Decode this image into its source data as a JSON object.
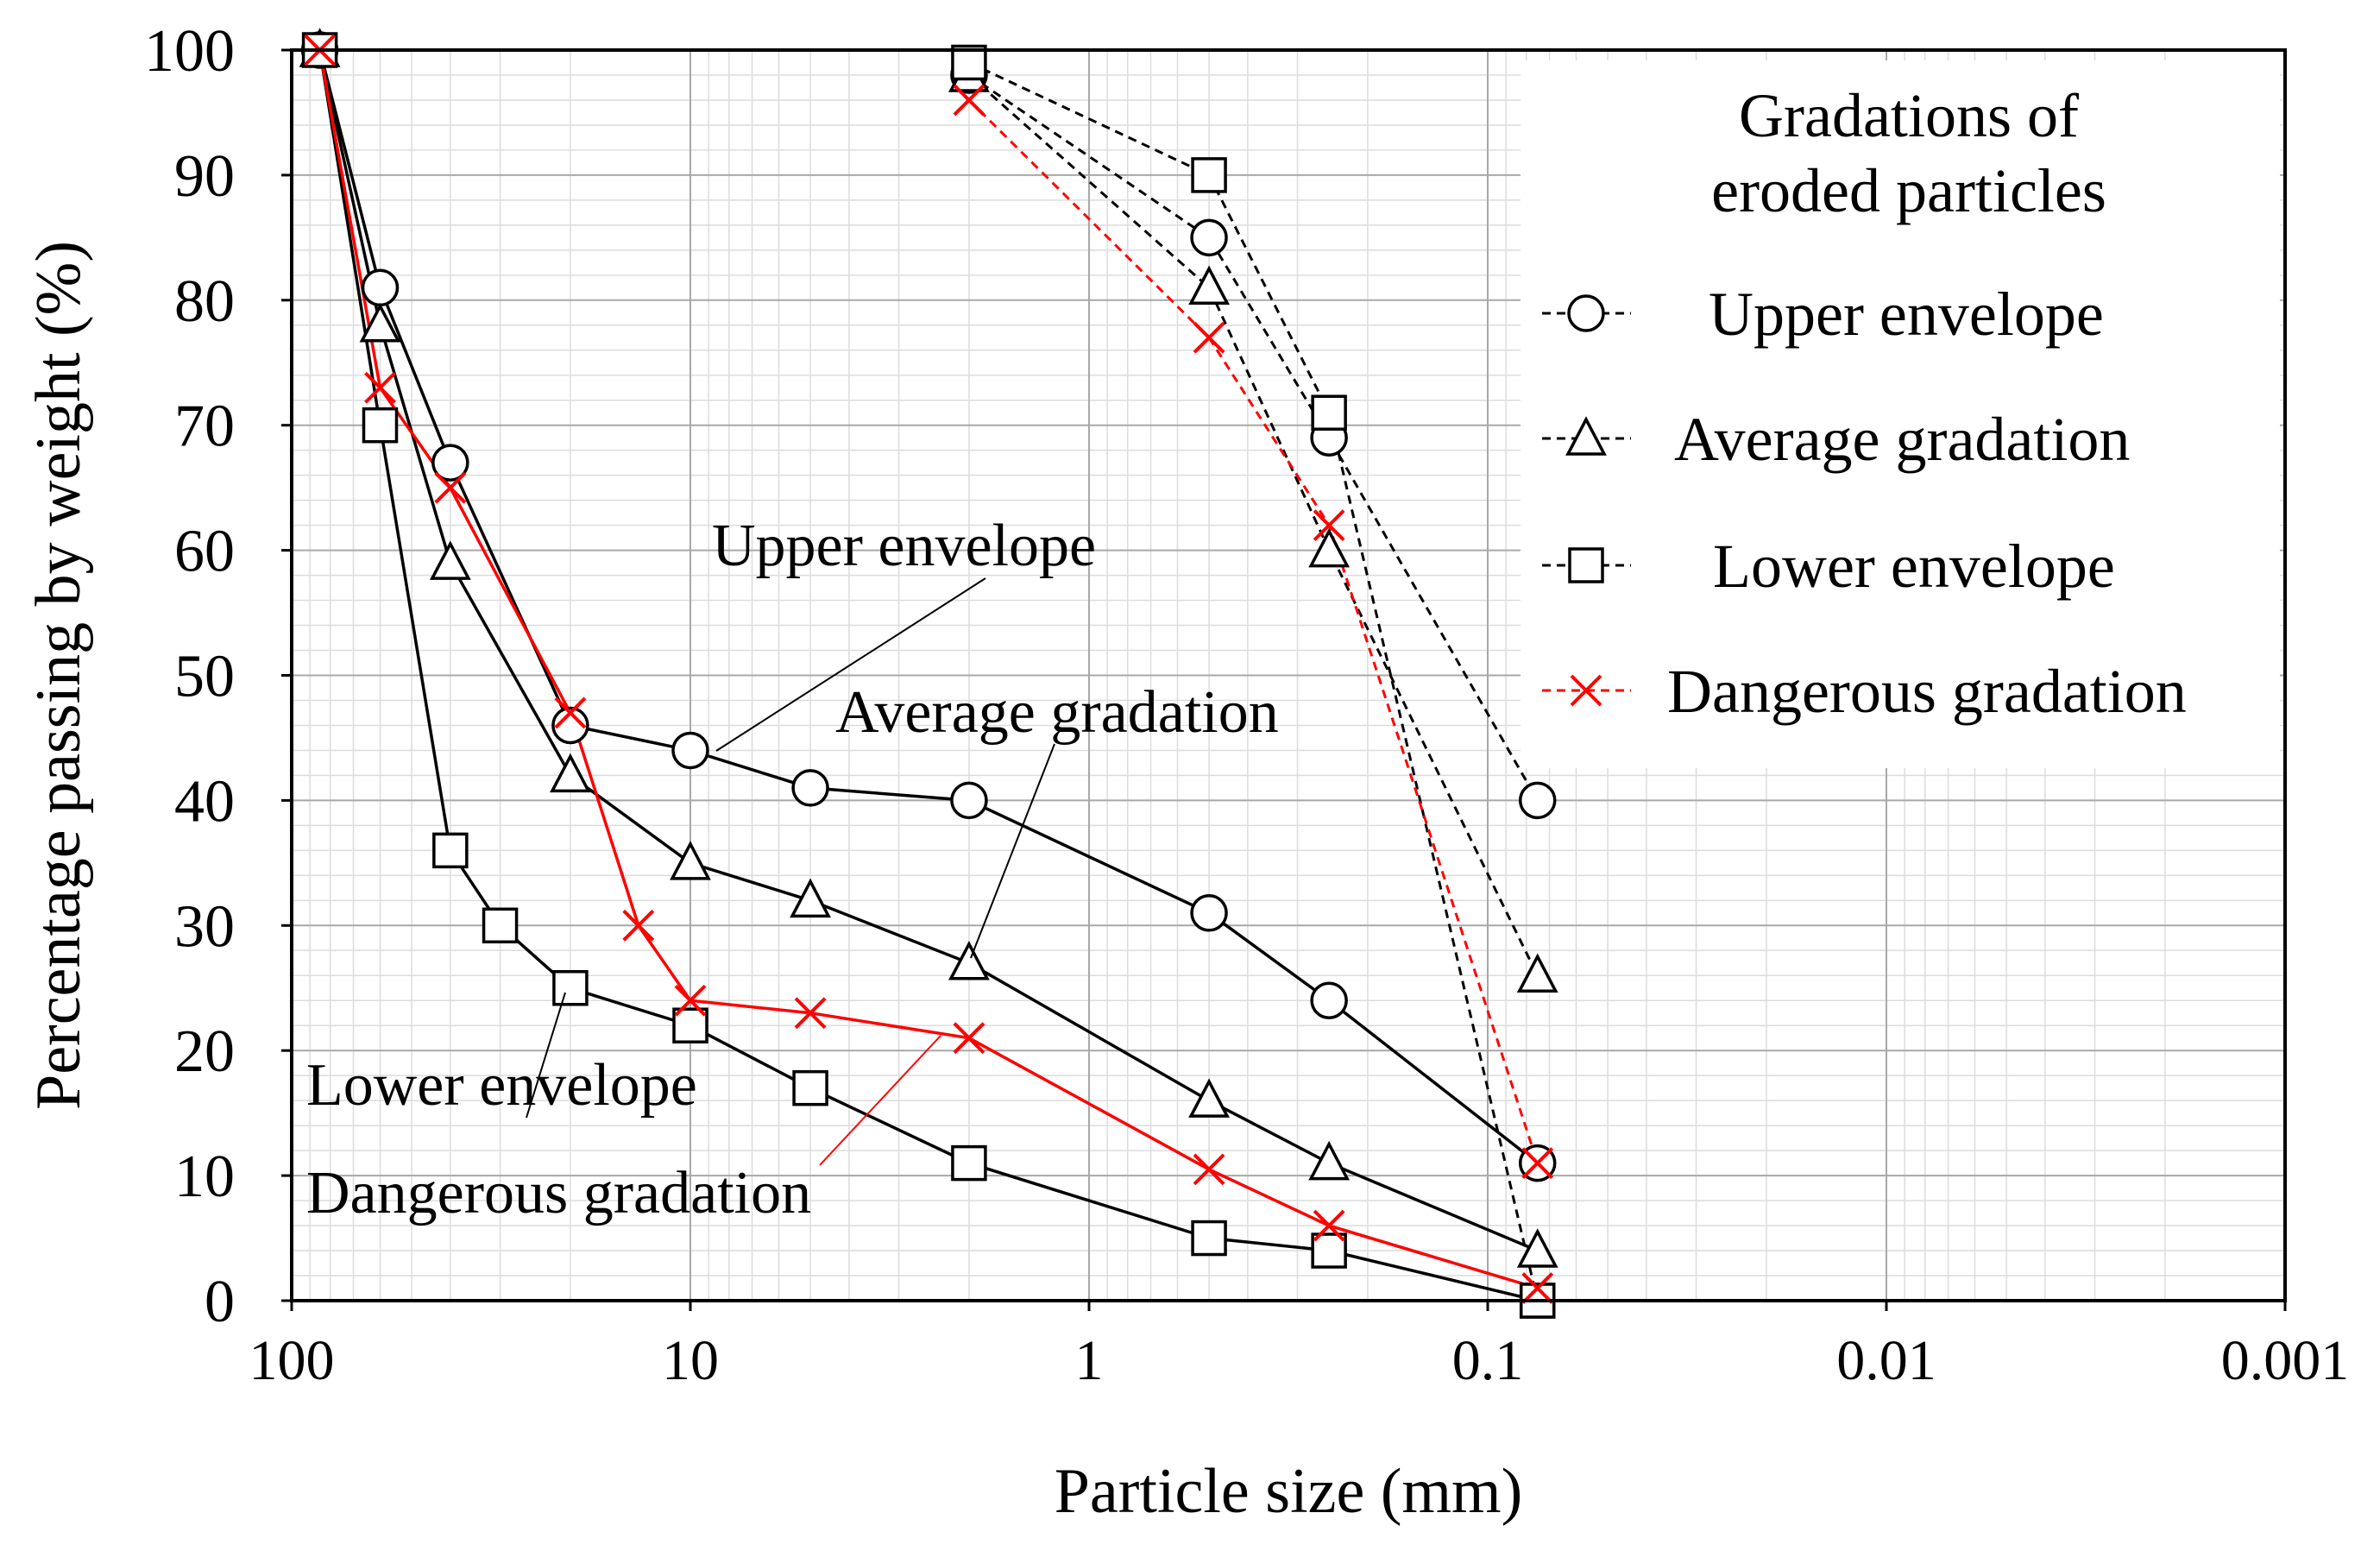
{
  "chart_data": {
    "type": "line",
    "title": "",
    "xlabel": "Particle size (mm)",
    "ylabel": "Percentage passing by weight (%)",
    "x_scale": "log",
    "x_reversed": true,
    "xlim": [
      100,
      0.001
    ],
    "ylim": [
      0,
      100
    ],
    "xticks": [
      100,
      10,
      1,
      0.1,
      0.01,
      0.001
    ],
    "xtick_labels": [
      "100",
      "10",
      "1",
      "0.1",
      "0.01",
      "0.001"
    ],
    "yticks": [
      0,
      10,
      20,
      30,
      40,
      50,
      60,
      70,
      80,
      90,
      100
    ],
    "ytick_labels": [
      "0",
      "10",
      "20",
      "30",
      "40",
      "50",
      "60",
      "70",
      "80",
      "90",
      "100"
    ],
    "grid": true,
    "legend": {
      "title_lines": [
        "Gradations of",
        "eroded particles"
      ],
      "position": "top-right"
    },
    "series": [
      {
        "name": "Upper envelope",
        "group": "soil",
        "marker": "circle",
        "color": "#000000",
        "style": "solid",
        "x": [
          85,
          60,
          40,
          20,
          10,
          5,
          2,
          0.5,
          0.25,
          0.075
        ],
        "y": [
          100,
          81,
          67,
          46,
          44,
          41,
          40,
          31,
          24,
          11
        ]
      },
      {
        "name": "Average gradation",
        "group": "soil",
        "marker": "triangle",
        "color": "#000000",
        "style": "solid",
        "x": [
          85,
          60,
          40,
          20,
          10,
          5,
          2,
          0.5,
          0.25,
          0.075
        ],
        "y": [
          100,
          78,
          59,
          42,
          35,
          32,
          27,
          16,
          11,
          4
        ]
      },
      {
        "name": "Lower envelope",
        "group": "soil",
        "marker": "square",
        "color": "#000000",
        "style": "solid",
        "x": [
          85,
          60,
          40,
          30,
          20,
          10,
          5,
          2,
          0.5,
          0.25,
          0.075
        ],
        "y": [
          100,
          70,
          36,
          30,
          25,
          22,
          17,
          11,
          5,
          4,
          0
        ]
      },
      {
        "name": "Dangerous gradation",
        "group": "soil",
        "marker": "x",
        "color": "#ff0000",
        "style": "solid",
        "x": [
          85,
          60,
          40,
          20,
          13.5,
          10,
          5,
          2,
          0.5,
          0.25,
          0.075
        ],
        "y": [
          100,
          73,
          65,
          47,
          30,
          24,
          23,
          21,
          10.5,
          6,
          1
        ]
      },
      {
        "name": "Upper envelope",
        "group": "eroded",
        "marker": "circle",
        "color": "#000000",
        "style": "dashed",
        "x": [
          2,
          0.5,
          0.25,
          0.075
        ],
        "y": [
          98,
          85,
          69,
          40
        ]
      },
      {
        "name": "Average gradation",
        "group": "eroded",
        "marker": "triangle",
        "color": "#000000",
        "style": "dashed",
        "x": [
          2,
          0.5,
          0.25,
          0.075
        ],
        "y": [
          98,
          81,
          60,
          26
        ]
      },
      {
        "name": "Lower envelope",
        "group": "eroded",
        "marker": "square",
        "color": "#000000",
        "style": "dashed",
        "x": [
          2,
          0.5,
          0.25,
          0.075
        ],
        "y": [
          99,
          90,
          71,
          0
        ]
      },
      {
        "name": "Dangerous gradation",
        "group": "eroded",
        "marker": "x",
        "color": "#ff0000",
        "style": "dashed",
        "x": [
          2,
          0.5,
          0.25,
          0.075
        ],
        "y": [
          96,
          77,
          62,
          11
        ]
      }
    ],
    "annotations": [
      {
        "label": "Upper envelope",
        "target_x": 10,
        "target_y": 44
      },
      {
        "label": "Average gradation",
        "target_x": 2,
        "target_y": 27
      },
      {
        "label": "Lower envelope",
        "target_x": 20,
        "target_y": 25
      },
      {
        "label": "Dangerous gradation",
        "target_x": 2,
        "target_y": 21,
        "color": "#ff0000"
      }
    ]
  }
}
